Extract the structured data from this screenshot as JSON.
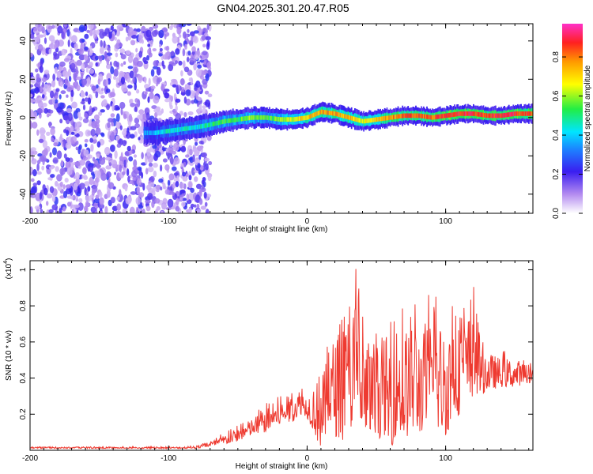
{
  "page": {
    "title": "GN04.2025.301.20.47.R05"
  },
  "chart_data": [
    {
      "type": "heatmap",
      "xlabel": "Height of straight line (km)",
      "ylabel": "Frequency (Hz)",
      "xlim": [
        -200,
        163
      ],
      "ylim": [
        -50,
        49
      ],
      "xticks": [
        -200,
        -100,
        0,
        100
      ],
      "yticks": [
        -40,
        -20,
        0,
        20,
        40
      ],
      "colorbar": {
        "label": "Normalized spectral amplitude",
        "range": [
          0,
          0.97
        ],
        "ticks": [
          0.0,
          0.2,
          0.4,
          0.6,
          0.8
        ]
      },
      "noise_region_x": [
        -200,
        -70
      ],
      "signal_start_x": -118,
      "signal_trace": {
        "x": [
          -118,
          -110,
          -100,
          -90,
          -80,
          -72,
          -60,
          -50,
          -40,
          -30,
          -20,
          -10,
          0,
          10,
          20,
          30,
          40,
          50,
          60,
          70,
          80,
          90,
          100,
          110,
          120,
          130,
          140,
          150,
          163
        ],
        "frequency": [
          -8,
          -8,
          -7,
          -6,
          -5,
          -4,
          -2,
          -1,
          0,
          0,
          -1,
          -1,
          0,
          3,
          2,
          0,
          -2,
          -1,
          0,
          1,
          1,
          0,
          1,
          2,
          2,
          1,
          1,
          2,
          2
        ],
        "peak_amplitude": [
          0.35,
          0.4,
          0.45,
          0.45,
          0.45,
          0.5,
          0.55,
          0.55,
          0.6,
          0.55,
          0.6,
          0.65,
          0.75,
          0.8,
          0.8,
          0.75,
          0.7,
          0.75,
          0.8,
          0.85,
          0.85,
          0.85,
          0.9,
          0.9,
          0.9,
          0.85,
          0.9,
          0.9,
          0.85
        ]
      }
    },
    {
      "type": "line",
      "xlabel": "Height of straight line (km)",
      "ylabel": "SNR (10 * v/v)",
      "yscale_label": "(x10",
      "yscale_exp": "4",
      "yscale_close": ")",
      "xlim": [
        -200,
        163
      ],
      "ylim": [
        0,
        1.05
      ],
      "xticks": [
        -200,
        -100,
        0,
        100
      ],
      "yticks": [
        0.2,
        0.4,
        0.6,
        0.8,
        1.0
      ],
      "series": [
        {
          "color": "#ee3a30",
          "envelope": {
            "x": [
              -200,
              -150,
              -100,
              -80,
              -70,
              -60,
              -50,
              -40,
              -30,
              -20,
              -10,
              -5,
              0,
              5,
              10,
              15,
              20,
              25,
              30,
              35,
              40,
              45,
              50,
              55,
              60,
              65,
              70,
              75,
              80,
              85,
              90,
              95,
              100,
              105,
              110,
              115,
              120,
              125,
              130,
              140,
              150,
              163
            ],
            "upper": [
              0.02,
              0.02,
              0.02,
              0.025,
              0.05,
              0.1,
              0.14,
              0.2,
              0.26,
              0.3,
              0.35,
              0.38,
              0.33,
              0.45,
              0.5,
              0.62,
              0.8,
              0.75,
              0.95,
              1.05,
              0.8,
              0.7,
              0.65,
              0.8,
              0.75,
              0.85,
              0.8,
              0.93,
              0.85,
              0.8,
              0.93,
              0.88,
              0.85,
              0.9,
              0.82,
              0.85,
              0.92,
              0.72,
              0.6,
              0.55,
              0.55,
              0.48
            ],
            "lower": [
              0.01,
              0.01,
              0.01,
              0.01,
              0.02,
              0.03,
              0.05,
              0.08,
              0.1,
              0.14,
              0.16,
              0.2,
              0.18,
              0.1,
              0.0,
              0.1,
              0.08,
              0.05,
              0.1,
              0.12,
              0.05,
              0.06,
              0.04,
              0.1,
              0.0,
              0.1,
              0.05,
              0.1,
              0.08,
              0.12,
              0.1,
              0.1,
              0.08,
              0.15,
              0.2,
              0.25,
              0.3,
              0.3,
              0.33,
              0.35,
              0.35,
              0.38
            ]
          }
        }
      ]
    }
  ]
}
